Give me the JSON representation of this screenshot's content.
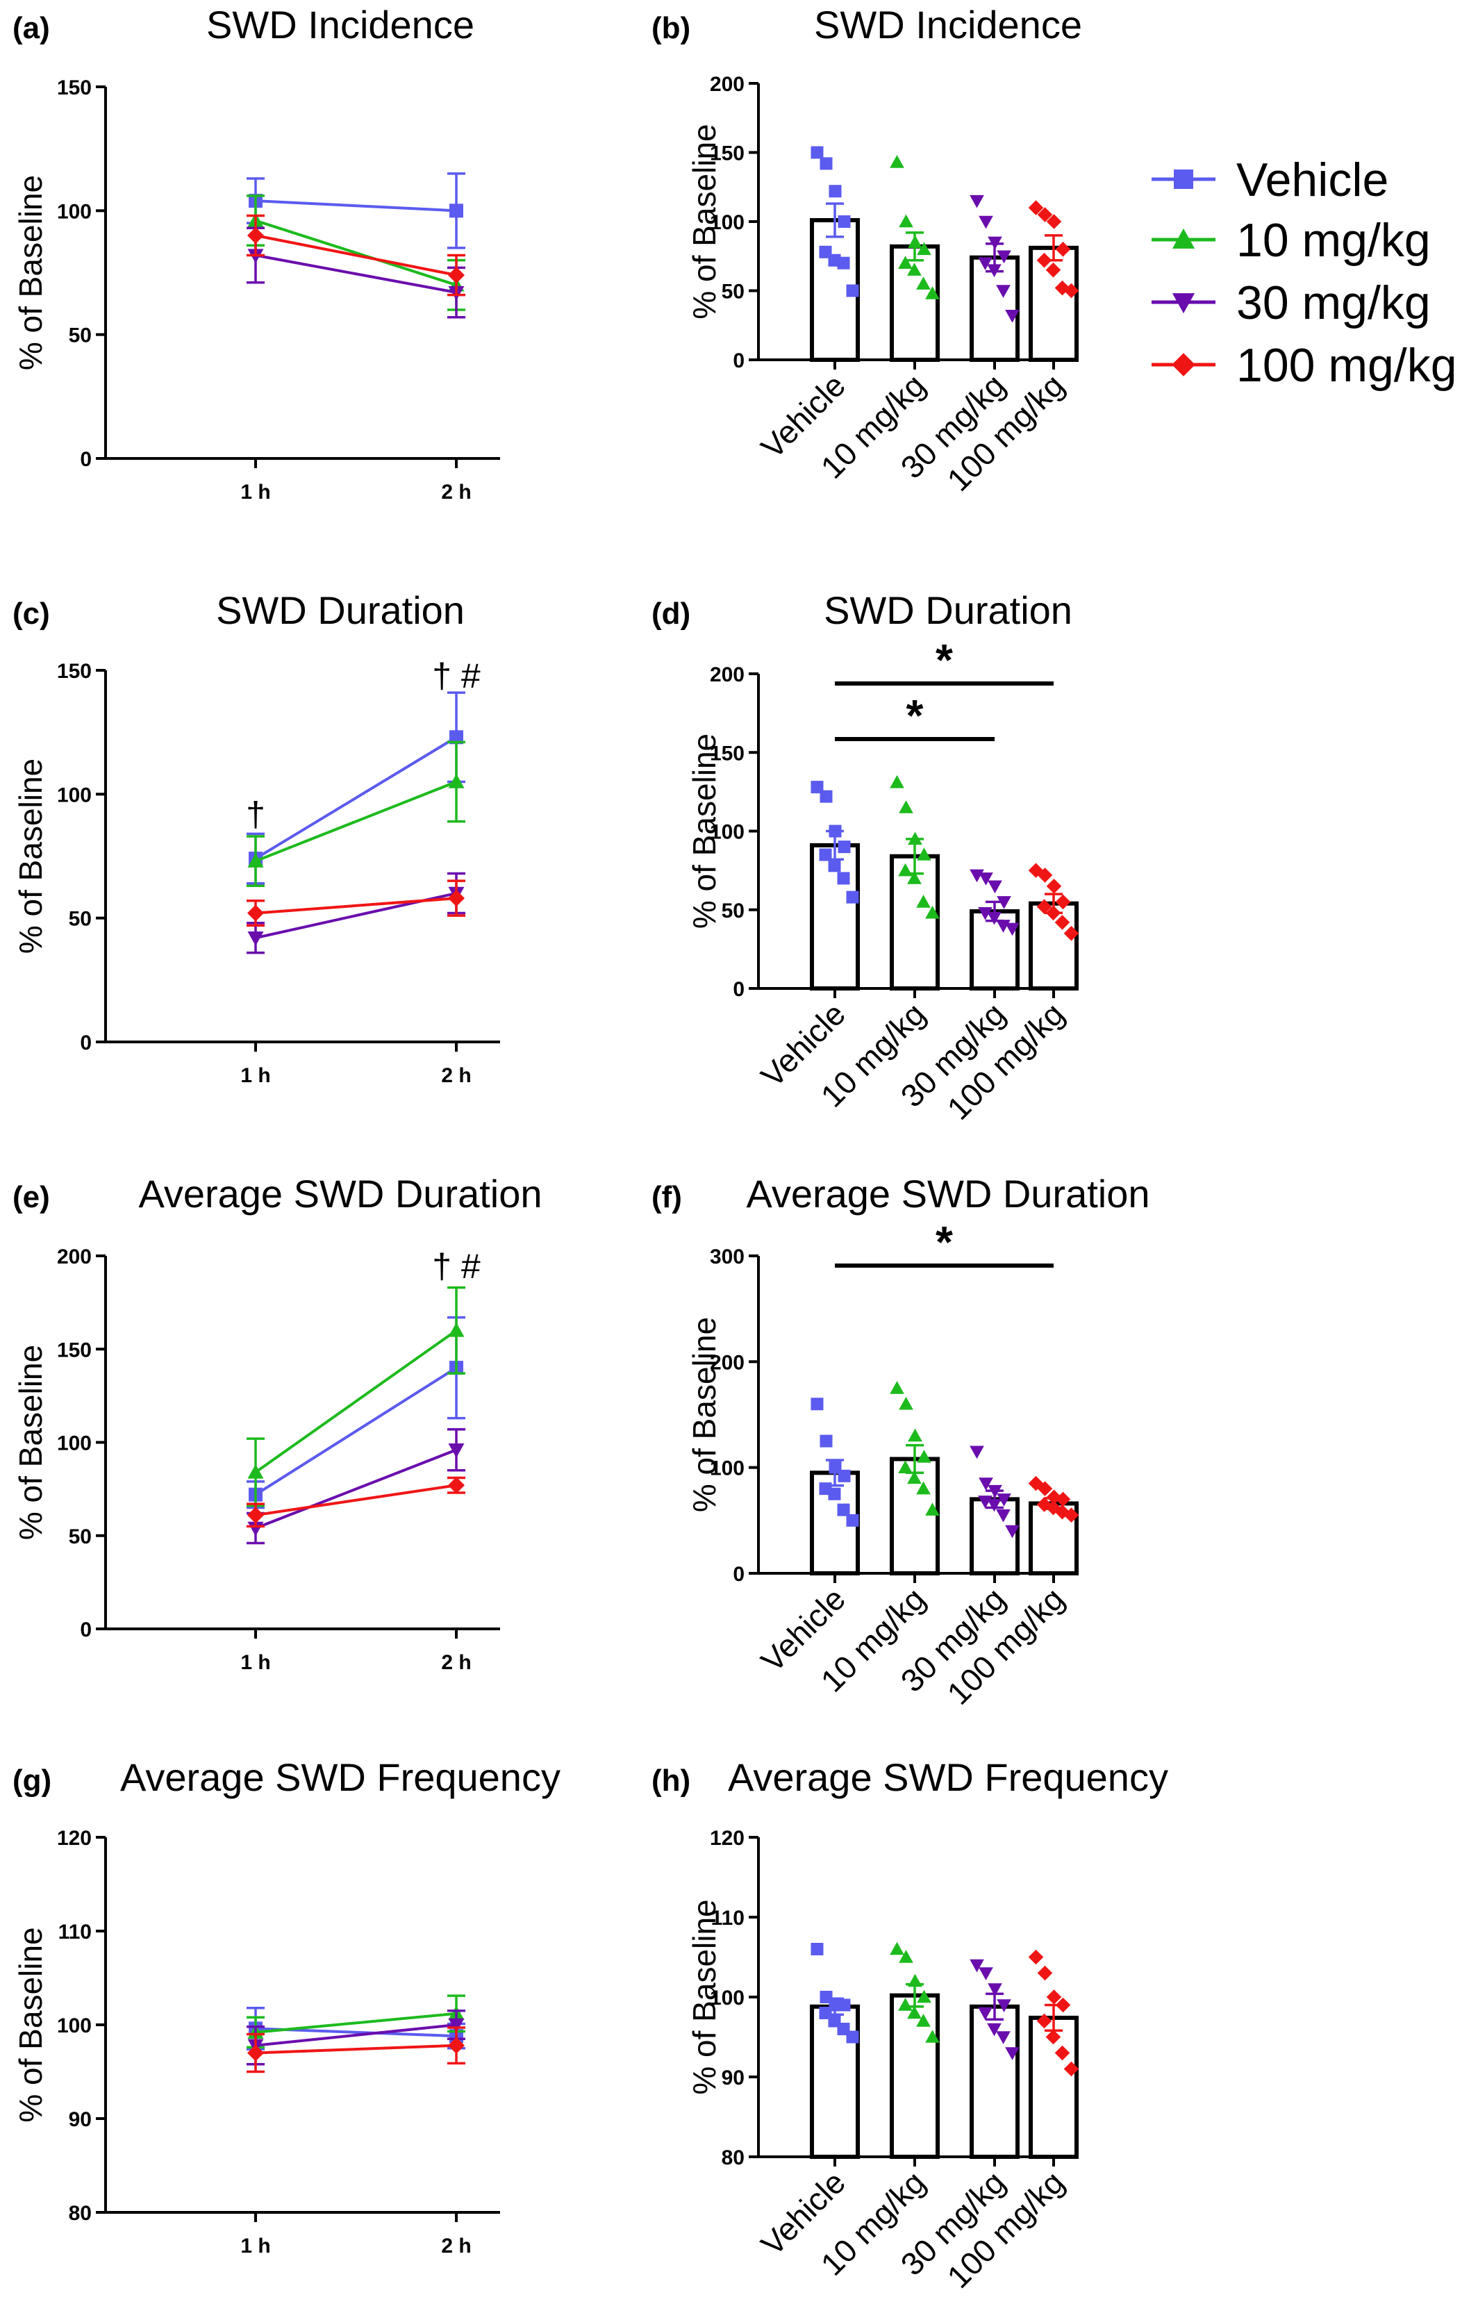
{
  "colors": {
    "Vehicle": "#5B5BEF",
    "10 mg/kg": "#1DBA1D",
    "30 mg/kg": "#6A0DAD",
    "100 mg/kg": "#F01515"
  },
  "legend": {
    "placement": "right of panel b",
    "items": [
      {
        "label": "Vehicle",
        "marker": "square"
      },
      {
        "label": "10 mg/kg",
        "marker": "triangle-up"
      },
      {
        "label": "30 mg/kg",
        "marker": "triangle-down"
      },
      {
        "label": "100 mg/kg",
        "marker": "diamond"
      }
    ]
  },
  "chart_data": [
    {
      "panel": "(a)",
      "type": "line",
      "title": "SWD Incidence",
      "ylabel": "% of Baseline",
      "xlabel": "",
      "categories": [
        "1 h",
        "2 h"
      ],
      "ylim": [
        0,
        150
      ],
      "yticks": [
        0,
        50,
        100,
        150
      ],
      "grid": false,
      "series": [
        {
          "name": "Vehicle",
          "marker": "square",
          "values": [
            104,
            100
          ],
          "err": [
            9,
            15
          ]
        },
        {
          "name": "10 mg/kg",
          "marker": "triangle-up",
          "values": [
            96,
            70
          ],
          "err": [
            10,
            10
          ]
        },
        {
          "name": "30 mg/kg",
          "marker": "triangle-down",
          "values": [
            82,
            67
          ],
          "err": [
            11,
            10
          ]
        },
        {
          "name": "100 mg/kg",
          "marker": "diamond",
          "values": [
            90,
            74
          ],
          "err": [
            8,
            8
          ]
        }
      ],
      "annotations": []
    },
    {
      "panel": "(b)",
      "type": "bar",
      "title": "SWD Incidence",
      "ylabel": "% of Baseline",
      "xlabel": "",
      "categories": [
        "Vehicle",
        "10 mg/kg",
        "30 mg/kg",
        "100 mg/kg"
      ],
      "ylim": [
        0,
        200
      ],
      "yticks": [
        0,
        50,
        100,
        150,
        200
      ],
      "grid": false,
      "values": [
        101,
        82,
        74,
        81
      ],
      "err": [
        12,
        10,
        10,
        9
      ],
      "markers": [
        "square",
        "triangle-up",
        "triangle-down",
        "diamond"
      ],
      "points": [
        [
          150,
          142,
          122,
          100,
          78,
          72,
          70,
          50
        ],
        [
          143,
          100,
          85,
          80,
          70,
          65,
          55,
          48
        ],
        [
          115,
          100,
          85,
          75,
          70,
          65,
          50,
          32
        ],
        [
          110,
          105,
          100,
          80,
          72,
          65,
          52,
          50
        ]
      ],
      "significance": []
    },
    {
      "panel": "(c)",
      "type": "line",
      "title": "SWD Duration",
      "ylabel": "% of Baseline",
      "xlabel": "",
      "categories": [
        "1 h",
        "2 h"
      ],
      "ylim": [
        0,
        150
      ],
      "yticks": [
        0,
        50,
        100,
        150
      ],
      "grid": false,
      "series": [
        {
          "name": "Vehicle",
          "marker": "square",
          "values": [
            74,
            123
          ],
          "err": [
            10,
            18
          ]
        },
        {
          "name": "10 mg/kg",
          "marker": "triangle-up",
          "values": [
            73,
            105
          ],
          "err": [
            10,
            16
          ]
        },
        {
          "name": "30 mg/kg",
          "marker": "triangle-down",
          "values": [
            42,
            60
          ],
          "err": [
            6,
            8
          ]
        },
        {
          "name": "100 mg/kg",
          "marker": "diamond",
          "values": [
            52,
            58
          ],
          "err": [
            5,
            7
          ]
        }
      ],
      "annotations": [
        {
          "x": "1 h",
          "y": 87,
          "text": "†"
        },
        {
          "x": "2 h",
          "y": 143,
          "text": "† #"
        }
      ]
    },
    {
      "panel": "(d)",
      "type": "bar",
      "title": "SWD Duration",
      "ylabel": "% of Baseline",
      "xlabel": "",
      "categories": [
        "Vehicle",
        "10 mg/kg",
        "30 mg/kg",
        "100 mg/kg"
      ],
      "ylim": [
        0,
        200
      ],
      "yticks": [
        0,
        50,
        100,
        150,
        200
      ],
      "grid": false,
      "values": [
        91,
        84,
        49,
        54
      ],
      "err": [
        9,
        11,
        6,
        6
      ],
      "markers": [
        "square",
        "triangle-up",
        "triangle-down",
        "diamond"
      ],
      "points": [
        [
          128,
          122,
          100,
          90,
          85,
          78,
          70,
          58
        ],
        [
          131,
          115,
          95,
          85,
          75,
          70,
          55,
          48
        ],
        [
          72,
          70,
          65,
          55,
          48,
          45,
          40,
          38
        ],
        [
          75,
          72,
          65,
          55,
          52,
          48,
          42,
          35
        ]
      ],
      "significance": [
        {
          "from": "Vehicle",
          "to": "100 mg/kg",
          "text": "*"
        },
        {
          "from": "Vehicle",
          "to": "30 mg/kg",
          "text": "*"
        }
      ]
    },
    {
      "panel": "(e)",
      "type": "line",
      "title": "Average SWD Duration",
      "ylabel": "% of Baseline",
      "xlabel": "",
      "categories": [
        "1 h",
        "2 h"
      ],
      "ylim": [
        0,
        200
      ],
      "yticks": [
        0,
        50,
        100,
        150,
        200
      ],
      "grid": false,
      "series": [
        {
          "name": "Vehicle",
          "marker": "square",
          "values": [
            72,
            140
          ],
          "err": [
            7,
            27
          ]
        },
        {
          "name": "10 mg/kg",
          "marker": "triangle-up",
          "values": [
            84,
            160
          ],
          "err": [
            18,
            23
          ]
        },
        {
          "name": "30 mg/kg",
          "marker": "triangle-down",
          "values": [
            54,
            96
          ],
          "err": [
            8,
            11
          ]
        },
        {
          "name": "100 mg/kg",
          "marker": "diamond",
          "values": [
            61,
            77
          ],
          "err": [
            6,
            4
          ]
        }
      ],
      "annotations": [
        {
          "x": "2 h",
          "y": 188,
          "text": "† #"
        }
      ]
    },
    {
      "panel": "(f)",
      "type": "bar",
      "title": "Average SWD Duration",
      "ylabel": "% of Baseline",
      "xlabel": "",
      "categories": [
        "Vehicle",
        "10 mg/kg",
        "30 mg/kg",
        "100 mg/kg"
      ],
      "ylim": [
        0,
        300
      ],
      "yticks": [
        0,
        100,
        200,
        300
      ],
      "grid": false,
      "values": [
        95,
        108,
        70,
        66
      ],
      "err": [
        12,
        13,
        8,
        5
      ],
      "markers": [
        "square",
        "triangle-up",
        "triangle-down",
        "diamond"
      ],
      "points": [
        [
          160,
          125,
          100,
          92,
          80,
          75,
          60,
          50
        ],
        [
          175,
          160,
          130,
          110,
          100,
          90,
          80,
          60
        ],
        [
          115,
          85,
          78,
          70,
          68,
          65,
          55,
          40
        ],
        [
          85,
          80,
          72,
          70,
          65,
          62,
          58,
          55
        ]
      ],
      "significance": [
        {
          "from": "Vehicle",
          "to": "100 mg/kg",
          "text": "*"
        }
      ]
    },
    {
      "panel": "(g)",
      "type": "line",
      "title": "Average SWD Frequency",
      "ylabel": "% of Baseline",
      "xlabel": "",
      "categories": [
        "1 h",
        "2 h"
      ],
      "ylim": [
        80,
        120
      ],
      "yticks": [
        80,
        90,
        100,
        110,
        120
      ],
      "grid": false,
      "series": [
        {
          "name": "Vehicle",
          "marker": "square",
          "values": [
            99.6,
            98.8
          ],
          "err": [
            2.2,
            1.3
          ]
        },
        {
          "name": "10 mg/kg",
          "marker": "triangle-up",
          "values": [
            99.2,
            101.2
          ],
          "err": [
            1.6,
            1.9
          ]
        },
        {
          "name": "30 mg/kg",
          "marker": "triangle-down",
          "values": [
            97.8,
            100.0
          ],
          "err": [
            2.0,
            1.5
          ]
        },
        {
          "name": "100 mg/kg",
          "marker": "diamond",
          "values": [
            97.0,
            97.8
          ],
          "err": [
            2.0,
            1.9
          ]
        }
      ],
      "annotations": []
    },
    {
      "panel": "(h)",
      "type": "bar",
      "title": "Average SWD Frequency",
      "ylabel": "% of Baseline",
      "xlabel": "",
      "categories": [
        "Vehicle",
        "10 mg/kg",
        "30 mg/kg",
        "100 mg/kg"
      ],
      "ylim": [
        80,
        120
      ],
      "yticks": [
        80,
        90,
        100,
        110,
        120
      ],
      "grid": false,
      "values": [
        98.8,
        100.2,
        98.8,
        97.4
      ],
      "err": [
        1.0,
        1.4,
        1.6,
        1.6
      ],
      "markers": [
        "square",
        "triangle-up",
        "triangle-down",
        "diamond"
      ],
      "points": [
        [
          106,
          100,
          99,
          99,
          98,
          97,
          96,
          95
        ],
        [
          106,
          105,
          102,
          100,
          99,
          98,
          97,
          95
        ],
        [
          104,
          103,
          101,
          99,
          98,
          96,
          95,
          93
        ],
        [
          105,
          103,
          100,
          99,
          97,
          95,
          93,
          91
        ]
      ],
      "significance": []
    }
  ]
}
